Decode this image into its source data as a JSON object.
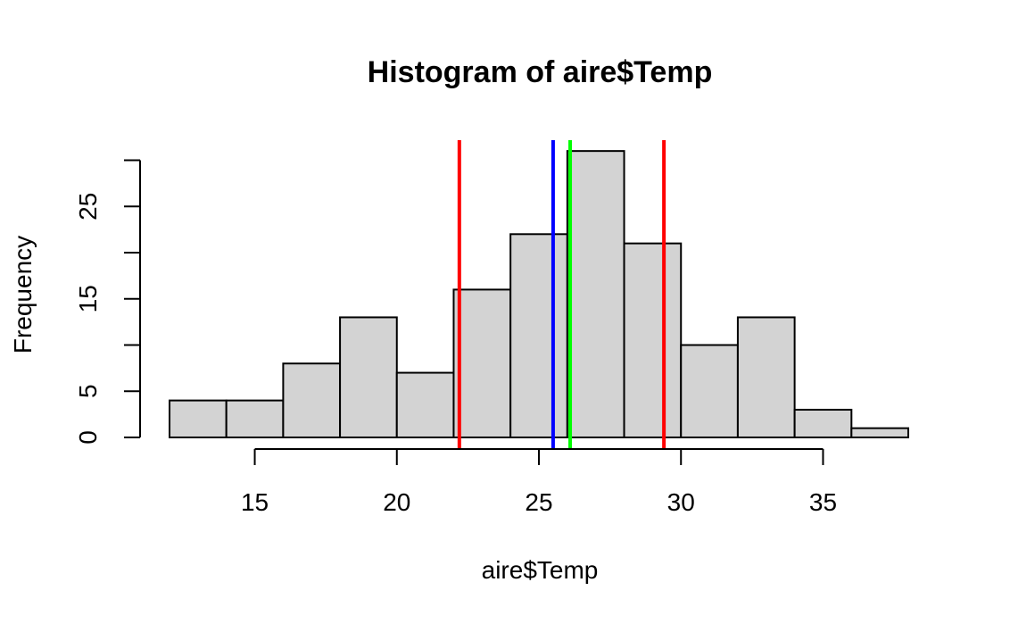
{
  "chart_data": {
    "type": "bar",
    "subtype": "histogram",
    "title": "Histogram of aire$Temp",
    "xlabel": "aire$Temp",
    "ylabel": "Frequency",
    "bins": [
      {
        "x0": 12,
        "x1": 14,
        "count": 4
      },
      {
        "x0": 14,
        "x1": 16,
        "count": 4
      },
      {
        "x0": 16,
        "x1": 18,
        "count": 8
      },
      {
        "x0": 18,
        "x1": 20,
        "count": 13
      },
      {
        "x0": 20,
        "x1": 22,
        "count": 7
      },
      {
        "x0": 22,
        "x1": 24,
        "count": 16
      },
      {
        "x0": 24,
        "x1": 26,
        "count": 22
      },
      {
        "x0": 26,
        "x1": 28,
        "count": 31
      },
      {
        "x0": 28,
        "x1": 30,
        "count": 21
      },
      {
        "x0": 30,
        "x1": 32,
        "count": 10
      },
      {
        "x0": 32,
        "x1": 34,
        "count": 13
      },
      {
        "x0": 34,
        "x1": 36,
        "count": 3
      },
      {
        "x0": 36,
        "x1": 38,
        "count": 1
      }
    ],
    "x_ticks": [
      "15",
      "20",
      "25",
      "30",
      "35"
    ],
    "y_ticks": [
      "0",
      "5",
      "15",
      "25"
    ],
    "y_tick_marks": [
      0,
      5,
      10,
      15,
      20,
      25,
      30
    ],
    "xlim": [
      12,
      38
    ],
    "ylim": [
      0,
      31
    ],
    "vertical_lines": [
      {
        "x": 22.2,
        "color": "#ff0000"
      },
      {
        "x": 25.5,
        "color": "#0000ff"
      },
      {
        "x": 26.1,
        "color": "#00ff00"
      },
      {
        "x": 29.4,
        "color": "#ff0000"
      }
    ],
    "bar_fill": "#d3d3d3",
    "bar_stroke": "#000000",
    "grid": false
  }
}
